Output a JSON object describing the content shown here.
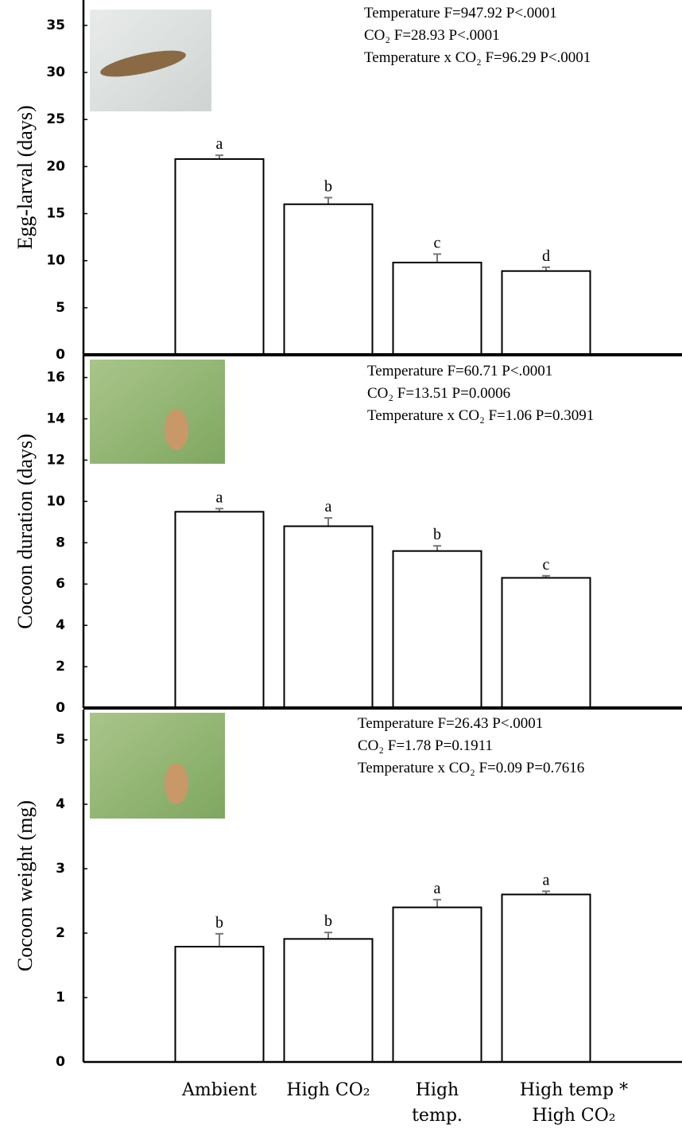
{
  "chart_data": [
    {
      "type": "bar",
      "ylabel": "Egg-larval (days)",
      "annotations": [
        "Temperature F=947.92 P<.0001",
        "CO₂ F=28.93 P<.0001",
        "Temperature x CO₂ F=96.29 P<.0001"
      ],
      "values": [
        20.8,
        16.0,
        9.8,
        8.9
      ],
      "errors": [
        0.4,
        0.7,
        0.9,
        0.4
      ],
      "letters": [
        "a",
        "b",
        "c",
        "d"
      ],
      "color": "#ffffff",
      "ylim": [
        0,
        37.7
      ],
      "yticks": [
        0,
        5,
        10,
        15,
        20,
        25,
        30,
        35
      ],
      "grid": false
    },
    {
      "type": "bar",
      "ylabel": "Cocoon duration (days)",
      "annotations": [
        "Temperature F=60.71 P<.0001",
        "CO₂ F=13.51 P=0.0006",
        "Temperature x CO₂ F=1.06 P=0.3091"
      ],
      "values": [
        9.5,
        8.8,
        7.6,
        6.3
      ],
      "errors": [
        0.15,
        0.4,
        0.25,
        0.1
      ],
      "letters": [
        "a",
        "a",
        "b",
        "c"
      ],
      "color": "#ffffff",
      "ylim": [
        0,
        17.1
      ],
      "yticks": [
        0,
        2,
        4,
        6,
        8,
        10,
        12,
        14,
        16
      ],
      "grid": false
    },
    {
      "type": "bar",
      "ylabel": "Cocoon weight (mg)",
      "annotations": [
        "Temperature F=26.43 P<.0001",
        "CO₂ F=1.78 P=0.1911",
        "Temperature x CO₂ F=0.09 P=0.7616"
      ],
      "categories": [
        "Ambient",
        "High CO₂",
        "High\ntemp.",
        "High temp *\nHigh CO₂"
      ],
      "values": [
        1.79,
        1.91,
        2.4,
        2.6
      ],
      "errors": [
        0.2,
        0.1,
        0.12,
        0.05
      ],
      "letters": [
        "b",
        "b",
        "a",
        "a"
      ],
      "color": "#ffffff",
      "ylim": [
        0,
        5.47
      ],
      "yticks": [
        0,
        1,
        2,
        3,
        4,
        5
      ],
      "grid": false
    }
  ]
}
